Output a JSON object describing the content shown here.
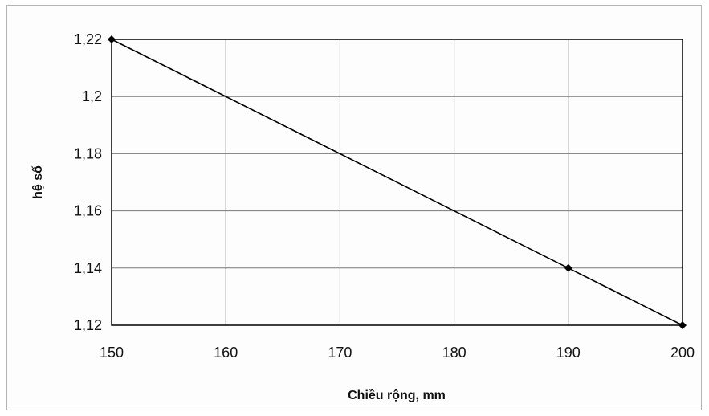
{
  "chart_data": {
    "type": "line",
    "title": "",
    "xlabel": "Chiều rộng, mm",
    "ylabel": "hệ số",
    "x_ticks": [
      "150",
      "160",
      "170",
      "180",
      "190",
      "200"
    ],
    "y_ticks": [
      "1,12",
      "1,14",
      "1,16",
      "1,18",
      "1,2",
      "1,22"
    ],
    "xlim": [
      150,
      200
    ],
    "ylim": [
      1.12,
      1.22
    ],
    "grid": true,
    "legend": "none",
    "series": [
      {
        "x": [
          150,
          190,
          200
        ],
        "y": [
          1.22,
          1.14,
          1.12
        ],
        "color": "#000000",
        "marker": "diamond"
      }
    ]
  }
}
